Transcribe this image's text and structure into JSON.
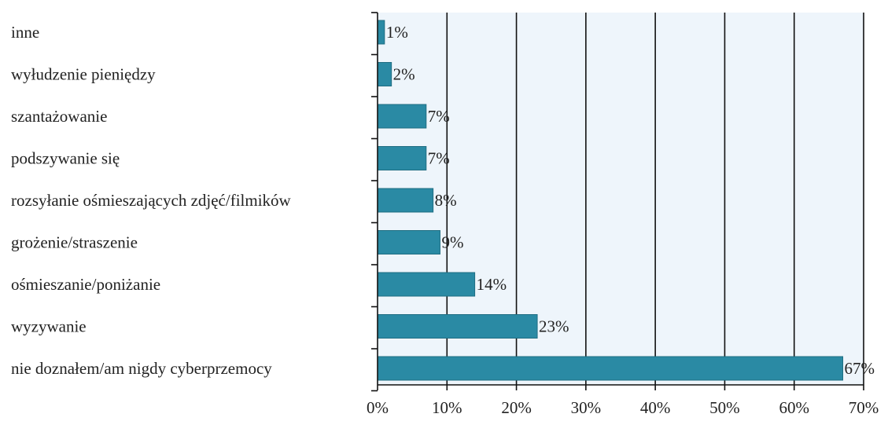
{
  "chart_data": {
    "type": "bar",
    "orientation": "horizontal",
    "categories": [
      "inne",
      "wyłudzenie pieniędzy",
      "szantażowanie",
      "podszywanie się",
      "rozsyłanie ośmieszających zdjęć/filmików",
      "grożenie/straszenie",
      "ośmieszanie/poniżanie",
      "wyzywanie",
      "nie doznałem/am nigdy cyberprzemocy"
    ],
    "values": [
      1,
      2,
      7,
      7,
      8,
      9,
      14,
      23,
      67
    ],
    "value_labels": [
      "1%",
      "2%",
      "7%",
      "7%",
      "8%",
      "9%",
      "14%",
      "23%",
      "67%"
    ],
    "xlim": [
      0,
      70
    ],
    "xticks": [
      0,
      10,
      20,
      30,
      40,
      50,
      60,
      70
    ],
    "xtick_labels": [
      "0%",
      "10%",
      "20%",
      "30%",
      "40%",
      "50%",
      "60%",
      "70%"
    ],
    "grid": true,
    "title": "",
    "xlabel": "",
    "ylabel": "",
    "colors": {
      "bar": "#2a8aa4",
      "bar_edge": "#1f6d82",
      "plot_background": "#eef5fb",
      "grid": "#111111",
      "axis": "#111111"
    }
  }
}
